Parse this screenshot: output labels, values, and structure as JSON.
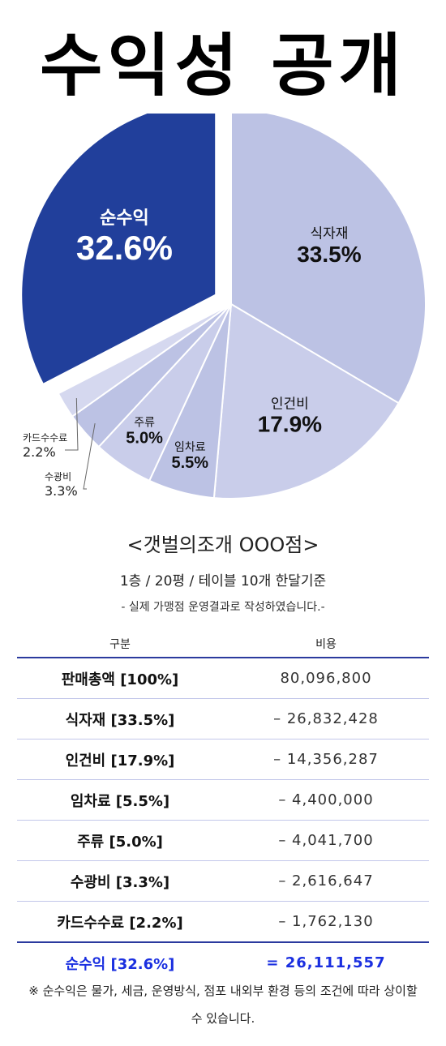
{
  "title": "수익성 공개",
  "chart_data": {
    "type": "pie",
    "slices": [
      {
        "label": "식자재",
        "value": 33.5,
        "display": "33.5%",
        "color": "#bcc2e4"
      },
      {
        "label": "인건비",
        "value": 17.9,
        "display": "17.9%",
        "color": "#c9cdea"
      },
      {
        "label": "임차료",
        "value": 5.5,
        "display": "5.5%",
        "color": "#bcc2e4"
      },
      {
        "label": "주류",
        "value": 5.0,
        "display": "5.0%",
        "color": "#c9cdea"
      },
      {
        "label": "수광비",
        "value": 3.3,
        "display": "3.3%",
        "color": "#bcc2e4"
      },
      {
        "label": "카드수수료",
        "value": 2.2,
        "display": "2.2%",
        "color": "#d5d8ef"
      },
      {
        "label": "순수익",
        "value": 32.6,
        "display": "32.6%",
        "color": "#213f9b"
      }
    ]
  },
  "store": {
    "name": "<갯벌의조개 OOO점>",
    "info": "1층 / 20평 / 테이블 10개 한달기준",
    "note": "- 실제 가맹점 운영결과로 작성하였습니다.-"
  },
  "table": {
    "headers": [
      "구분",
      "비용"
    ],
    "rows": [
      {
        "label": "판매총액 [100%]",
        "value": "80,096,800"
      },
      {
        "label": "식자재 [33.5%]",
        "value": "– 26,832,428"
      },
      {
        "label": "인건비 [17.9%]",
        "value": "– 14,356,287"
      },
      {
        "label": "임차료 [5.5%]",
        "value": "– 4,400,000"
      },
      {
        "label": "주류 [5.0%]",
        "value": "– 4,041,700"
      },
      {
        "label": "수광비 [3.3%]",
        "value": "– 2,616,647"
      },
      {
        "label": "카드수수료 [2.2%]",
        "value": "– 1,762,130"
      }
    ],
    "total": {
      "label": "순수익 [32.6%]",
      "value": "= 26,111,557"
    }
  },
  "footnote": "※ 순수익은 물가, 세금, 운영방식, 점포 내외부 환경 등의 조건에 따라 상이할 수 있습니다."
}
